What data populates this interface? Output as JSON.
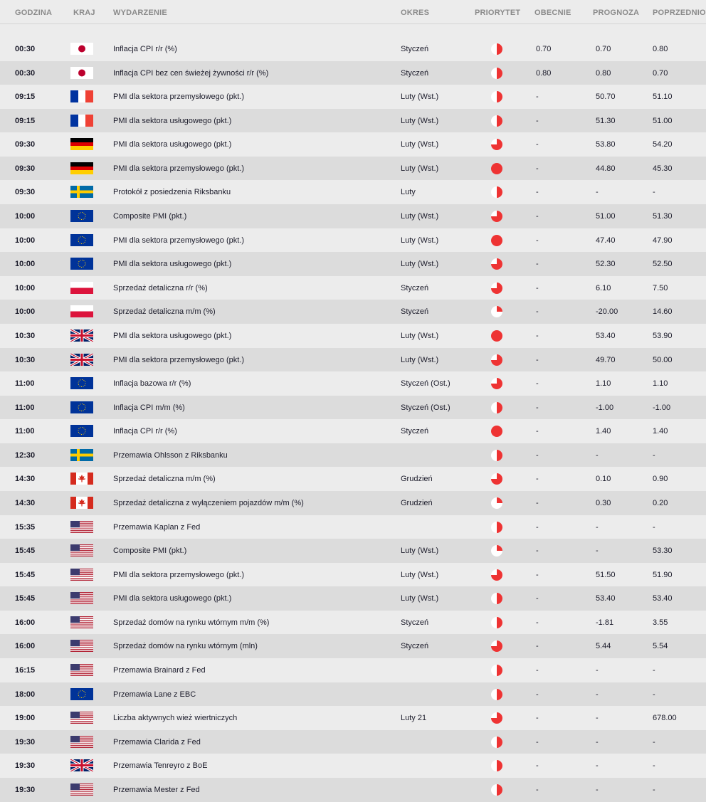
{
  "header": {
    "time": "GODZINA",
    "country": "KRAJ",
    "event": "WYDARZENIE",
    "period": "OKRES",
    "priority": "PRIORYTET",
    "actual": "OBECNIE",
    "forecast": "PROGNOZA",
    "previous": "POPRZEDNIO"
  },
  "priority_color": "#ee3333",
  "priority_scale": "fraction of circle filled: 1=25%, 2=50%, 3=75%, 4=100%",
  "rows": [
    {
      "time": "00:30",
      "country": "jp",
      "event": "Inflacja CPI r/r (%)",
      "period": "Styczeń",
      "priority": 2,
      "actual": "0.70",
      "forecast": "0.70",
      "previous": "0.80"
    },
    {
      "time": "00:30",
      "country": "jp",
      "event": "Inflacja CPI bez cen świeżej żywności r/r (%)",
      "period": "Styczeń",
      "priority": 2,
      "actual": "0.80",
      "forecast": "0.80",
      "previous": "0.70"
    },
    {
      "time": "09:15",
      "country": "fr",
      "event": "PMI dla sektora przemysłowego (pkt.)",
      "period": "Luty (Wst.)",
      "priority": 2,
      "actual": "-",
      "forecast": "50.70",
      "previous": "51.10"
    },
    {
      "time": "09:15",
      "country": "fr",
      "event": "PMI dla sektora usługowego (pkt.)",
      "period": "Luty (Wst.)",
      "priority": 2,
      "actual": "-",
      "forecast": "51.30",
      "previous": "51.00"
    },
    {
      "time": "09:30",
      "country": "de",
      "event": "PMI dla sektora usługowego (pkt.)",
      "period": "Luty (Wst.)",
      "priority": 3,
      "actual": "-",
      "forecast": "53.80",
      "previous": "54.20"
    },
    {
      "time": "09:30",
      "country": "de",
      "event": "PMI dla sektora przemysłowego (pkt.)",
      "period": "Luty (Wst.)",
      "priority": 4,
      "actual": "-",
      "forecast": "44.80",
      "previous": "45.30"
    },
    {
      "time": "09:30",
      "country": "se",
      "event": "Protokół z posiedzenia Riksbanku",
      "period": "Luty",
      "priority": 2,
      "actual": "-",
      "forecast": "-",
      "previous": "-"
    },
    {
      "time": "10:00",
      "country": "eu",
      "event": "Composite PMI (pkt.)",
      "period": "Luty (Wst.)",
      "priority": 3,
      "actual": "-",
      "forecast": "51.00",
      "previous": "51.30"
    },
    {
      "time": "10:00",
      "country": "eu",
      "event": "PMI dla sektora przemysłowego (pkt.)",
      "period": "Luty (Wst.)",
      "priority": 4,
      "actual": "-",
      "forecast": "47.40",
      "previous": "47.90"
    },
    {
      "time": "10:00",
      "country": "eu",
      "event": "PMI dla sektora usługowego (pkt.)",
      "period": "Luty (Wst.)",
      "priority": 3,
      "actual": "-",
      "forecast": "52.30",
      "previous": "52.50"
    },
    {
      "time": "10:00",
      "country": "pl",
      "event": "Sprzedaż detaliczna r/r (%)",
      "period": "Styczeń",
      "priority": 3,
      "actual": "-",
      "forecast": "6.10",
      "previous": "7.50"
    },
    {
      "time": "10:00",
      "country": "pl",
      "event": "Sprzedaż detaliczna m/m (%)",
      "period": "Styczeń",
      "priority": 1,
      "actual": "-",
      "forecast": "-20.00",
      "previous": "14.60"
    },
    {
      "time": "10:30",
      "country": "gb",
      "event": "PMI dla sektora usługowego (pkt.)",
      "period": "Luty (Wst.)",
      "priority": 4,
      "actual": "-",
      "forecast": "53.40",
      "previous": "53.90"
    },
    {
      "time": "10:30",
      "country": "gb",
      "event": "PMI dla sektora przemysłowego (pkt.)",
      "period": "Luty (Wst.)",
      "priority": 3,
      "actual": "-",
      "forecast": "49.70",
      "previous": "50.00"
    },
    {
      "time": "11:00",
      "country": "eu",
      "event": "Inflacja bazowa r/r (%)",
      "period": "Styczeń (Ost.)",
      "priority": 3,
      "actual": "-",
      "forecast": "1.10",
      "previous": "1.10"
    },
    {
      "time": "11:00",
      "country": "eu",
      "event": "Inflacja CPI m/m (%)",
      "period": "Styczeń (Ost.)",
      "priority": 2,
      "actual": "-",
      "forecast": "-1.00",
      "previous": "-1.00"
    },
    {
      "time": "11:00",
      "country": "eu",
      "event": "Inflacja CPI r/r (%)",
      "period": "Styczeń",
      "priority": 4,
      "actual": "-",
      "forecast": "1.40",
      "previous": "1.40"
    },
    {
      "time": "12:30",
      "country": "se",
      "event": "Przemawia Ohlsson z Riksbanku",
      "period": "",
      "priority": 2,
      "actual": "-",
      "forecast": "-",
      "previous": "-"
    },
    {
      "time": "14:30",
      "country": "ca",
      "event": "Sprzedaż detaliczna m/m (%)",
      "period": "Grudzień",
      "priority": 3,
      "actual": "-",
      "forecast": "0.10",
      "previous": "0.90"
    },
    {
      "time": "14:30",
      "country": "ca",
      "event": "Sprzedaż detaliczna z wyłączeniem pojazdów m/m (%)",
      "period": "Grudzień",
      "priority": 1,
      "actual": "-",
      "forecast": "0.30",
      "previous": "0.20"
    },
    {
      "time": "15:35",
      "country": "us",
      "event": "Przemawia Kaplan z Fed",
      "period": "",
      "priority": 2,
      "actual": "-",
      "forecast": "-",
      "previous": "-"
    },
    {
      "time": "15:45",
      "country": "us",
      "event": "Composite PMI (pkt.)",
      "period": "Luty (Wst.)",
      "priority": 1,
      "actual": "-",
      "forecast": "-",
      "previous": "53.30"
    },
    {
      "time": "15:45",
      "country": "us",
      "event": "PMI dla sektora przemysłowego (pkt.)",
      "period": "Luty (Wst.)",
      "priority": 3,
      "actual": "-",
      "forecast": "51.50",
      "previous": "51.90"
    },
    {
      "time": "15:45",
      "country": "us",
      "event": "PMI dla sektora usługowego (pkt.)",
      "period": "Luty (Wst.)",
      "priority": 2,
      "actual": "-",
      "forecast": "53.40",
      "previous": "53.40"
    },
    {
      "time": "16:00",
      "country": "us",
      "event": "Sprzedaż domów na rynku wtórnym m/m (%)",
      "period": "Styczeń",
      "priority": 2,
      "actual": "-",
      "forecast": "-1.81",
      "previous": "3.55"
    },
    {
      "time": "16:00",
      "country": "us",
      "event": "Sprzedaż domów na rynku wtórnym (mln)",
      "period": "Styczeń",
      "priority": 3,
      "actual": "-",
      "forecast": "5.44",
      "previous": "5.54"
    },
    {
      "time": "16:15",
      "country": "us",
      "event": "Przemawia Brainard z Fed",
      "period": "",
      "priority": 2,
      "actual": "-",
      "forecast": "-",
      "previous": "-"
    },
    {
      "time": "18:00",
      "country": "eu",
      "event": "Przemawia Lane z EBC",
      "period": "",
      "priority": 2,
      "actual": "-",
      "forecast": "-",
      "previous": "-"
    },
    {
      "time": "19:00",
      "country": "us",
      "event": "Liczba aktywnych wież wiertniczych",
      "period": "Luty 21",
      "priority": 3,
      "actual": "-",
      "forecast": "-",
      "previous": "678.00"
    },
    {
      "time": "19:30",
      "country": "us",
      "event": "Przemawia Clarida z Fed",
      "period": "",
      "priority": 2,
      "actual": "-",
      "forecast": "-",
      "previous": "-"
    },
    {
      "time": "19:30",
      "country": "gb",
      "event": "Przemawia Tenreyro z BoE",
      "period": "",
      "priority": 2,
      "actual": "-",
      "forecast": "-",
      "previous": "-"
    },
    {
      "time": "19:30",
      "country": "us",
      "event": "Przemawia Mester z Fed",
      "period": "",
      "priority": 2,
      "actual": "-",
      "forecast": "-",
      "previous": "-"
    }
  ]
}
